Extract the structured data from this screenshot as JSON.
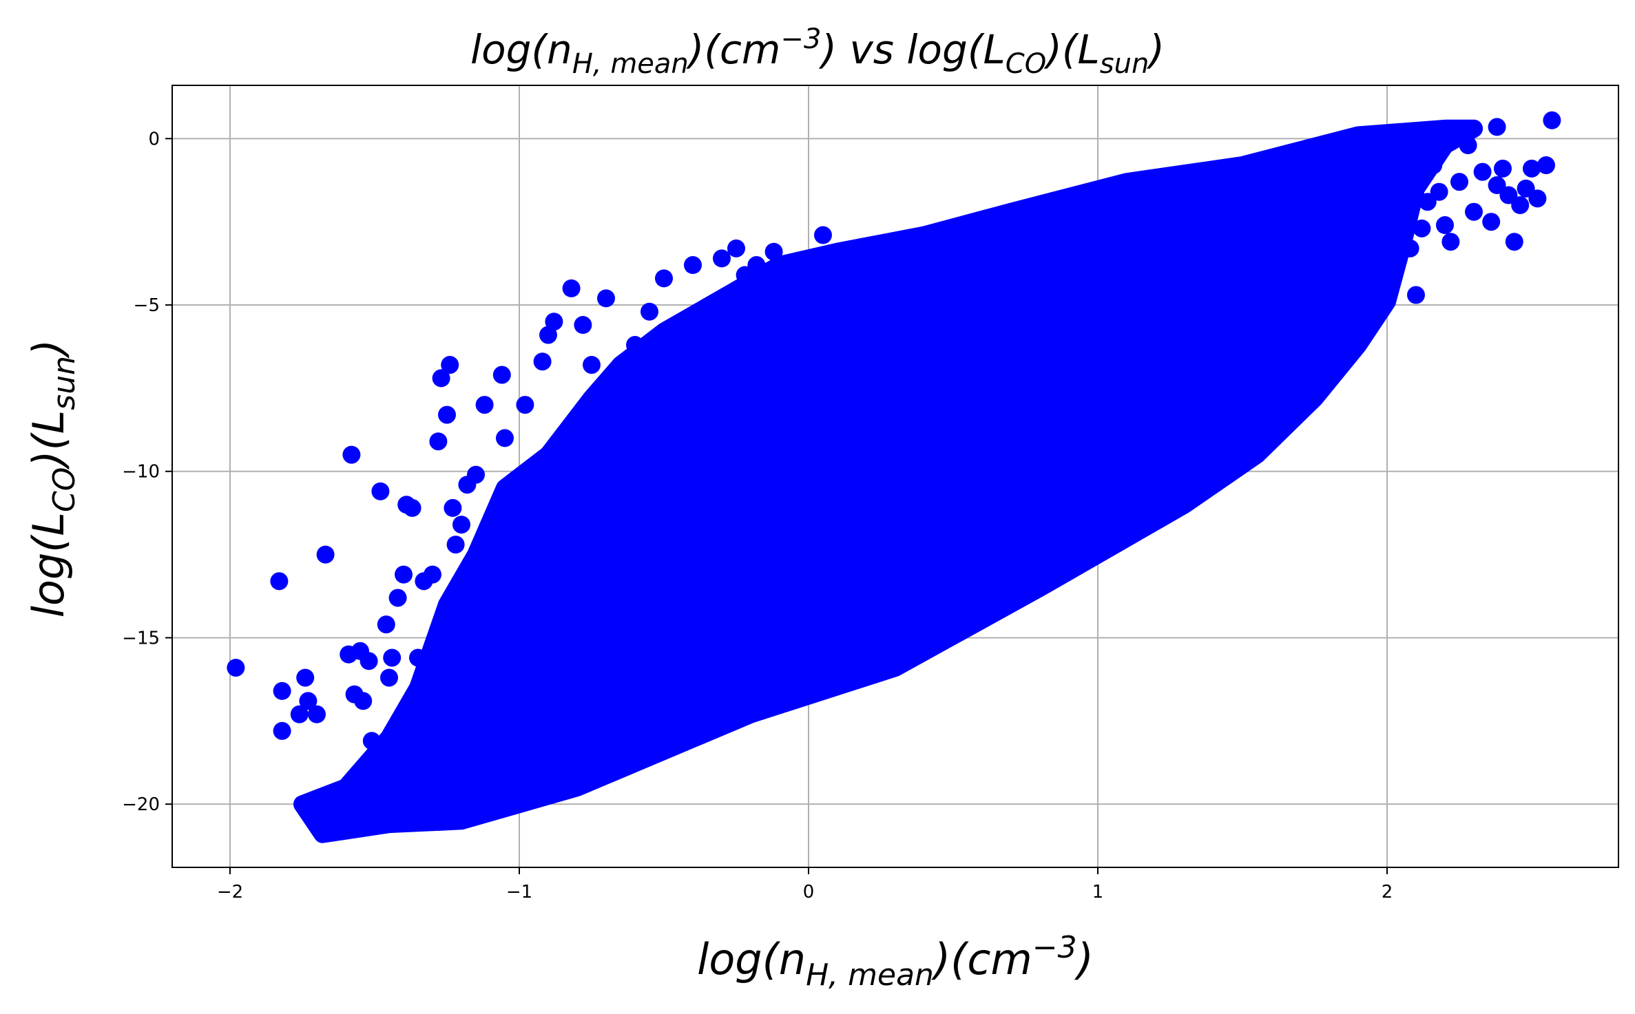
{
  "chart_data": {
    "type": "scatter",
    "title": {
      "pre": "log(n",
      "sub1": "H, mean",
      "mid1": ")(cm",
      "sup1": "−3",
      "mid2": ") vs log(L",
      "sub2": "CO",
      "mid3": ")(L",
      "sub3": "sun",
      "post": ")"
    },
    "xlabel": {
      "pre": "log(n",
      "sub": "H, mean",
      "mid": ")(cm",
      "sup": "−3",
      "post": ")"
    },
    "ylabel": {
      "pre": "log(L",
      "sub1": "CO",
      "mid": ")(L",
      "sub2": "sun",
      "post": ")"
    },
    "xlim": [
      -2.2,
      2.8
    ],
    "ylim": [
      -21.9,
      1.6
    ],
    "xticks": [
      -2,
      -1,
      0,
      1,
      2
    ],
    "xtick_labels": [
      "−2",
      "−1",
      "0",
      "1",
      "2"
    ],
    "yticks": [
      0,
      -5,
      -10,
      -15,
      -20
    ],
    "ytick_labels": [
      "0",
      "−5",
      "−10",
      "−15",
      "−20"
    ],
    "grid": true,
    "marker_color": "#0000ff",
    "dense_region": [
      [
        -1.68,
        -20.9
      ],
      [
        -1.45,
        -20.6
      ],
      [
        -1.2,
        -20.5
      ],
      [
        -0.8,
        -19.5
      ],
      [
        -0.2,
        -17.3
      ],
      [
        0.3,
        -15.9
      ],
      [
        0.8,
        -13.5
      ],
      [
        1.3,
        -11.0
      ],
      [
        1.55,
        -9.5
      ],
      [
        1.75,
        -7.8
      ],
      [
        1.9,
        -6.2
      ],
      [
        2.0,
        -4.9
      ],
      [
        2.05,
        -3.3
      ],
      [
        2.1,
        -1.5
      ],
      [
        2.2,
        -0.2
      ],
      [
        2.3,
        0.3
      ],
      [
        2.2,
        0.3
      ],
      [
        1.9,
        0.1
      ],
      [
        1.5,
        -0.8
      ],
      [
        1.1,
        -1.3
      ],
      [
        0.7,
        -2.2
      ],
      [
        0.4,
        -2.9
      ],
      [
        0.1,
        -3.4
      ],
      [
        -0.1,
        -3.8
      ],
      [
        -0.3,
        -4.8
      ],
      [
        -0.5,
        -5.8
      ],
      [
        -0.65,
        -6.8
      ],
      [
        -0.75,
        -7.8
      ],
      [
        -0.9,
        -9.5
      ],
      [
        -1.05,
        -10.5
      ],
      [
        -1.15,
        -12.5
      ],
      [
        -1.25,
        -14.0
      ],
      [
        -1.35,
        -16.5
      ],
      [
        -1.45,
        -18.0
      ],
      [
        -1.6,
        -19.5
      ],
      [
        -1.75,
        -20.0
      ]
    ],
    "points": [
      [
        -1.98,
        -15.9
      ],
      [
        -1.83,
        -13.3
      ],
      [
        -1.82,
        -16.6
      ],
      [
        -1.82,
        -17.8
      ],
      [
        -1.76,
        -17.3
      ],
      [
        -1.74,
        -16.2
      ],
      [
        -1.73,
        -16.9
      ],
      [
        -1.7,
        -17.3
      ],
      [
        -1.67,
        -12.5
      ],
      [
        -1.59,
        -15.5
      ],
      [
        -1.58,
        -9.5
      ],
      [
        -1.57,
        -16.7
      ],
      [
        -1.55,
        -15.4
      ],
      [
        -1.54,
        -16.9
      ],
      [
        -1.52,
        -15.7
      ],
      [
        -1.51,
        -18.1
      ],
      [
        -1.48,
        -10.6
      ],
      [
        -1.46,
        -14.6
      ],
      [
        -1.45,
        -16.2
      ],
      [
        -1.44,
        -15.6
      ],
      [
        -1.42,
        -13.8
      ],
      [
        -1.4,
        -13.1
      ],
      [
        -1.39,
        -11.0
      ],
      [
        -1.37,
        -11.1
      ],
      [
        -1.35,
        -15.6
      ],
      [
        -1.33,
        -13.3
      ],
      [
        -1.3,
        -13.1
      ],
      [
        -1.28,
        -9.1
      ],
      [
        -1.27,
        -7.2
      ],
      [
        -1.25,
        -8.3
      ],
      [
        -1.24,
        -6.8
      ],
      [
        -1.23,
        -11.1
      ],
      [
        -1.22,
        -12.2
      ],
      [
        -1.2,
        -11.6
      ],
      [
        -1.18,
        -10.4
      ],
      [
        -1.15,
        -10.1
      ],
      [
        -1.12,
        -8.0
      ],
      [
        -1.06,
        -7.1
      ],
      [
        -1.05,
        -9.0
      ],
      [
        -0.98,
        -8.0
      ],
      [
        -0.92,
        -6.7
      ],
      [
        -0.9,
        -5.9
      ],
      [
        -0.88,
        -5.5
      ],
      [
        -0.82,
        -4.5
      ],
      [
        -0.78,
        -5.6
      ],
      [
        -0.75,
        -6.8
      ],
      [
        -0.7,
        -4.8
      ],
      [
        -0.65,
        -7.0
      ],
      [
        -0.6,
        -6.2
      ],
      [
        -0.55,
        -5.2
      ],
      [
        -0.5,
        -4.2
      ],
      [
        -0.45,
        -5.8
      ],
      [
        -0.4,
        -3.8
      ],
      [
        -0.35,
        -5.1
      ],
      [
        -0.3,
        -3.6
      ],
      [
        -0.25,
        -3.3
      ],
      [
        -0.22,
        -4.1
      ],
      [
        -0.18,
        -3.8
      ],
      [
        -0.12,
        -3.4
      ],
      [
        0.05,
        -2.9
      ],
      [
        1.82,
        -0.9
      ],
      [
        1.85,
        -1.5
      ],
      [
        1.88,
        -2.8
      ],
      [
        1.9,
        -4.4
      ],
      [
        1.92,
        -3.6
      ],
      [
        1.95,
        -3.0
      ],
      [
        2.0,
        -1.2
      ],
      [
        2.02,
        -2.4
      ],
      [
        2.05,
        -0.9
      ],
      [
        2.08,
        -3.3
      ],
      [
        2.1,
        -4.7
      ],
      [
        2.12,
        -2.7
      ],
      [
        2.14,
        -1.9
      ],
      [
        2.16,
        -0.8
      ],
      [
        2.18,
        -1.6
      ],
      [
        2.2,
        -2.6
      ],
      [
        2.22,
        -3.1
      ],
      [
        2.25,
        -1.3
      ],
      [
        2.28,
        -0.2
      ],
      [
        2.3,
        -2.2
      ],
      [
        2.33,
        -1.0
      ],
      [
        2.36,
        -2.5
      ],
      [
        2.38,
        -1.4
      ],
      [
        2.4,
        -0.9
      ],
      [
        2.42,
        -1.7
      ],
      [
        2.44,
        -3.1
      ],
      [
        2.46,
        -2.0
      ],
      [
        2.48,
        -1.5
      ],
      [
        2.5,
        -0.9
      ],
      [
        2.52,
        -1.8
      ],
      [
        2.55,
        -0.8
      ],
      [
        2.57,
        0.55
      ],
      [
        2.38,
        0.35
      ],
      [
        2.3,
        0.3
      ]
    ]
  }
}
